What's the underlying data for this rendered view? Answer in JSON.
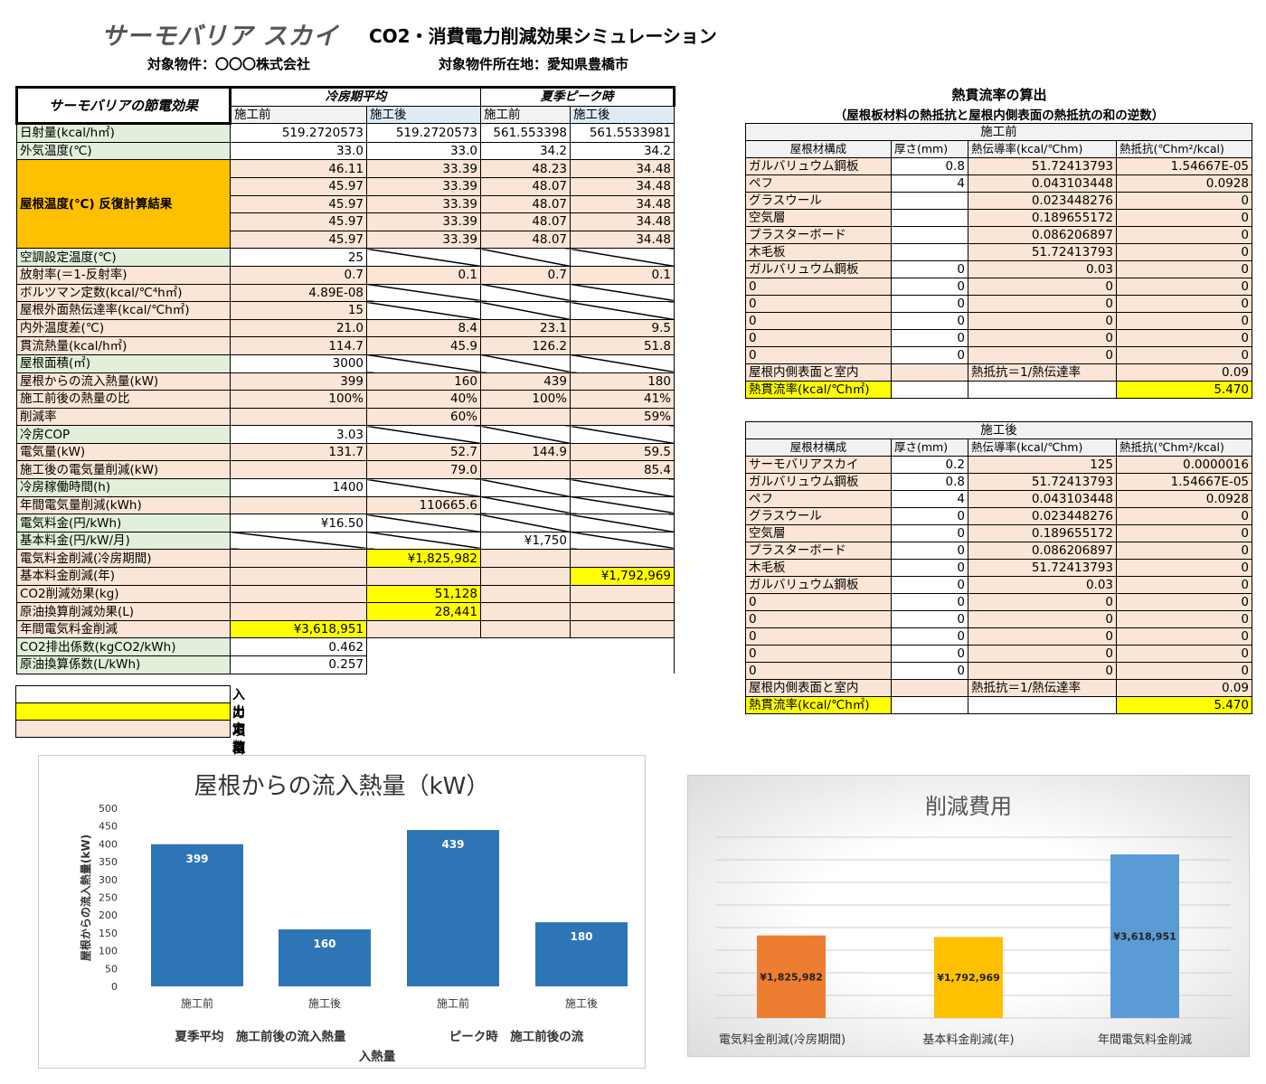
{
  "header": {
    "logo": "サーモバリア スカイ",
    "title": "CO2・消費電力削減効果シミュレーション",
    "property_label": "対象物件：",
    "property_value": "〇〇〇株式会社",
    "location_label": "対象物件所在地：",
    "location_value": "愛知県豊橋市"
  },
  "main_table": {
    "title": "サーモバリアの節電効果",
    "group_cooling": "冷房期平均",
    "group_peak": "夏季ピーク時",
    "before": "施工前",
    "after": "施工後",
    "roof_temp_label": "屋根温度(℃) 反復計算結果",
    "rows_top": [
      {
        "label": "日射量(kcal/h㎡)",
        "lc": "c-label",
        "cells": [
          [
            "519.2720573",
            "c-in"
          ],
          [
            "519.2720573",
            "c-in"
          ],
          [
            "561.553398",
            "c-in"
          ],
          [
            "561.5533981",
            "c-in"
          ]
        ]
      },
      {
        "label": "外気温度(℃)",
        "lc": "c-label",
        "cells": [
          [
            "33.0",
            "c-in"
          ],
          [
            "33.0",
            "c-in"
          ],
          [
            "34.2",
            "c-in"
          ],
          [
            "34.2",
            "c-in"
          ]
        ]
      }
    ],
    "roof_temps": [
      [
        "46.11",
        "33.39",
        "48.23",
        "34.48"
      ],
      [
        "45.97",
        "33.39",
        "48.07",
        "34.48"
      ],
      [
        "45.97",
        "33.39",
        "48.07",
        "34.48"
      ],
      [
        "45.97",
        "33.39",
        "48.07",
        "34.48"
      ],
      [
        "45.97",
        "33.39",
        "48.07",
        "34.48"
      ]
    ],
    "rows": [
      {
        "label": "空調設定温度(℃)",
        "lc": "c-label",
        "cells": [
          [
            "25",
            "c-in"
          ],
          [
            "",
            "slash"
          ],
          [
            "",
            "slash"
          ],
          [
            "",
            "slash"
          ]
        ]
      },
      {
        "label": "放射率(＝1-反射率)",
        "lc": "c-const",
        "cells": [
          [
            "0.7",
            "c-const"
          ],
          [
            "0.1",
            "c-const"
          ],
          [
            "0.7",
            "c-const"
          ],
          [
            "0.1",
            "c-const"
          ]
        ]
      },
      {
        "label": "ボルツマン定数(kcal/℃⁴h㎡)",
        "lc": "c-const",
        "cells": [
          [
            "4.89E-08",
            "c-const"
          ],
          [
            "",
            "slash"
          ],
          [
            "",
            "slash"
          ],
          [
            "",
            "slash"
          ]
        ]
      },
      {
        "label": "屋根外面熱伝達率(kcal/℃h㎡)",
        "lc": "c-const",
        "cells": [
          [
            "15",
            "c-const"
          ],
          [
            "",
            "slash"
          ],
          [
            "",
            "slash"
          ],
          [
            "",
            "slash"
          ]
        ]
      },
      {
        "label": "内外温度差(℃)",
        "lc": "c-const",
        "cells": [
          [
            "21.0",
            "c-const"
          ],
          [
            "8.4",
            "c-const"
          ],
          [
            "23.1",
            "c-const"
          ],
          [
            "9.5",
            "c-const"
          ]
        ]
      },
      {
        "label": "貫流熱量(kcal/h㎡)",
        "lc": "c-const",
        "cells": [
          [
            "114.7",
            "c-const"
          ],
          [
            "45.9",
            "c-const"
          ],
          [
            "126.2",
            "c-const"
          ],
          [
            "51.8",
            "c-const"
          ]
        ]
      },
      {
        "label": "屋根面積(㎡)",
        "lc": "c-label",
        "cells": [
          [
            "3000",
            "c-in"
          ],
          [
            "",
            "slash"
          ],
          [
            "",
            "slash"
          ],
          [
            "",
            "slash"
          ]
        ]
      },
      {
        "label": "屋根からの流入熱量(kW)",
        "lc": "c-const",
        "cells": [
          [
            "399",
            "c-const"
          ],
          [
            "160",
            "c-const"
          ],
          [
            "439",
            "c-const"
          ],
          [
            "180",
            "c-const"
          ]
        ]
      },
      {
        "label": "施工前後の熱量の比",
        "lc": "c-const",
        "cells": [
          [
            "100%",
            "c-const"
          ],
          [
            "40%",
            "c-const"
          ],
          [
            "100%",
            "c-const"
          ],
          [
            "41%",
            "c-const"
          ]
        ]
      },
      {
        "label": "削減率",
        "lc": "c-const",
        "cells": [
          [
            "",
            "c-const"
          ],
          [
            "60%",
            "c-const"
          ],
          [
            "",
            "c-const"
          ],
          [
            "59%",
            "c-const"
          ]
        ]
      },
      {
        "label": "冷房COP",
        "lc": "c-label",
        "cells": [
          [
            "3.03",
            "c-in"
          ],
          [
            "",
            "slash"
          ],
          [
            "",
            "slash"
          ],
          [
            "",
            "slash"
          ]
        ]
      },
      {
        "label": "電気量(kW)",
        "lc": "c-const",
        "cells": [
          [
            "131.7",
            "c-const"
          ],
          [
            "52.7",
            "c-const"
          ],
          [
            "144.9",
            "c-const"
          ],
          [
            "59.5",
            "c-const"
          ]
        ]
      },
      {
        "label": "施工後の電気量削減(kW)",
        "lc": "c-const",
        "cells": [
          [
            "",
            "c-const"
          ],
          [
            "79.0",
            "c-const"
          ],
          [
            "",
            "c-const"
          ],
          [
            "85.4",
            "c-const"
          ]
        ]
      },
      {
        "label": "冷房稼働時間(h)",
        "lc": "c-label",
        "cells": [
          [
            "1400",
            "c-in"
          ],
          [
            "",
            "slash"
          ],
          [
            "",
            "slash"
          ],
          [
            "",
            "slash"
          ]
        ]
      },
      {
        "label": "年間電気量削減(kWh)",
        "lc": "c-const",
        "cells": [
          [
            "",
            "c-const"
          ],
          [
            "110665.6",
            "c-const"
          ],
          [
            "",
            "slash"
          ],
          [
            "",
            "slash"
          ]
        ]
      },
      {
        "label": "電気料金(円/kWh)",
        "lc": "c-label",
        "cells": [
          [
            "¥16.50",
            "c-in"
          ],
          [
            "",
            "slash"
          ],
          [
            "",
            "slash"
          ],
          [
            "",
            "slash"
          ]
        ]
      },
      {
        "label": "基本料金(円/kW/月)",
        "lc": "c-label",
        "cells": [
          [
            "",
            "slash"
          ],
          [
            "",
            "slash"
          ],
          [
            "¥1,750",
            "c-in"
          ],
          [
            "",
            "slash"
          ]
        ]
      },
      {
        "label": "電気料金削減(冷房期間)",
        "lc": "c-const",
        "cells": [
          [
            "",
            "c-const"
          ],
          [
            "¥1,825,982",
            "c-out"
          ],
          [
            "",
            "c-const"
          ],
          [
            "",
            "c-const"
          ]
        ]
      },
      {
        "label": "基本料金削減(年)",
        "lc": "c-const",
        "cells": [
          [
            "",
            "c-const"
          ],
          [
            "",
            "c-const"
          ],
          [
            "",
            "c-const"
          ],
          [
            "¥1,792,969",
            "c-out"
          ]
        ]
      },
      {
        "label": "CO2削減効果(kg)",
        "lc": "c-const",
        "cells": [
          [
            "",
            "c-const"
          ],
          [
            "51,128",
            "c-out"
          ],
          [
            "",
            "c-const"
          ],
          [
            "",
            "c-const"
          ]
        ]
      },
      {
        "label": "原油換算削減効果(L)",
        "lc": "c-const",
        "cells": [
          [
            "",
            "c-const"
          ],
          [
            "28,441",
            "c-out"
          ],
          [
            "",
            "c-const"
          ],
          [
            "",
            "c-const"
          ]
        ]
      },
      {
        "label": "年間電気料金削減",
        "lc": "c-const",
        "cells": [
          [
            "¥3,618,951",
            "c-out"
          ],
          [
            "",
            "c-const"
          ],
          [
            "",
            "c-const"
          ],
          [
            "",
            "c-const"
          ]
        ]
      },
      {
        "label": "CO2排出係数(kgCO2/kWh)",
        "lc": "c-label",
        "cells": [
          [
            "0.462",
            "c-in"
          ]
        ]
      },
      {
        "label": "原油換算係数(L/kWh)",
        "lc": "c-label",
        "cells": [
          [
            "0.257",
            "c-in"
          ]
        ]
      }
    ]
  },
  "legend": [
    {
      "label": "入力項目",
      "color": "#ffffff"
    },
    {
      "label": "出力項目",
      "color": "#ffff00"
    },
    {
      "label": "定数または途中計算結果",
      "color": "#fbe5d6"
    }
  ],
  "heat_flow": {
    "title": "熱貫流率の算出",
    "subtitle": "（屋根板材料の熱抵抗と屋根内側表面の熱抵抗の和の逆数）",
    "col_material": "屋根材構成",
    "col_thickness": "厚さ(mm)",
    "col_conductivity": "熱伝導率(kcal/℃hm)",
    "col_resistance": "熱抵抗(℃hm²/kcal)",
    "inner_label": "屋根内側表面と室内",
    "inner_formula": "熱抵抗＝1/熱伝達率",
    "u_label": "熱貫流率(kcal/℃h㎡)",
    "before": {
      "title": "施工前",
      "rows": [
        [
          "ガルバリュウム鋼板",
          "0.8",
          "51.72413793",
          "1.54667E-05"
        ],
        [
          "ペフ",
          "4",
          "0.043103448",
          "0.0928"
        ],
        [
          "グラスウール",
          "",
          "0.023448276",
          "0"
        ],
        [
          "空気層",
          "",
          "0.189655172",
          "0"
        ],
        [
          "プラスターボード",
          "",
          "0.086206897",
          "0"
        ],
        [
          "木毛板",
          "",
          "51.72413793",
          "0"
        ],
        [
          "ガルバリュウム鋼板",
          "0",
          "0.03",
          "0"
        ],
        [
          "0",
          "0",
          "0",
          "0"
        ],
        [
          "0",
          "0",
          "0",
          "0"
        ],
        [
          "0",
          "0",
          "0",
          "0"
        ],
        [
          "0",
          "0",
          "0",
          "0"
        ],
        [
          "0",
          "0",
          "0",
          "0"
        ]
      ],
      "inner_value": "0.09",
      "u_value": "5.470"
    },
    "after": {
      "title": "施工後",
      "rows": [
        [
          "サーモバリアスカイ",
          "0.2",
          "125",
          "0.0000016"
        ],
        [
          "ガルバリュウム鋼板",
          "0.8",
          "51.72413793",
          "1.54667E-05"
        ],
        [
          "ペフ",
          "4",
          "0.043103448",
          "0.0928"
        ],
        [
          "グラスウール",
          "0",
          "0.023448276",
          "0"
        ],
        [
          "空気層",
          "0",
          "0.189655172",
          "0"
        ],
        [
          "プラスターボード",
          "0",
          "0.086206897",
          "0"
        ],
        [
          "木毛板",
          "0",
          "51.72413793",
          "0"
        ],
        [
          "ガルバリュウム鋼板",
          "0",
          "0.03",
          "0"
        ],
        [
          "0",
          "0",
          "0",
          "0"
        ],
        [
          "0",
          "0",
          "0",
          "0"
        ],
        [
          "0",
          "0",
          "0",
          "0"
        ],
        [
          "0",
          "0",
          "0",
          "0"
        ],
        [
          "0",
          "0",
          "0",
          "0"
        ]
      ],
      "inner_value": "0.09",
      "u_value": "5.470"
    }
  },
  "chart_data": [
    {
      "type": "bar",
      "title": "屋根からの流入熱量（kW）",
      "ylabel": "屋根からの流入熱量(kW)",
      "ylim": [
        0,
        500
      ],
      "yticks": [
        "0",
        "50",
        "100",
        "150",
        "200",
        "250",
        "300",
        "350",
        "400",
        "450",
        "500"
      ],
      "categories": [
        "施工前",
        "施工後",
        "施工前",
        "施工後"
      ],
      "values": [
        399,
        160,
        439,
        180
      ],
      "value_labels": [
        "399",
        "160",
        "439",
        "180"
      ],
      "group_labels": [
        "夏季平均　施工前後の流入熱量",
        "ピーク時　施工前後の流"
      ],
      "group_label_tail": "入熱量",
      "colors": [
        "#2e75b6"
      ]
    },
    {
      "type": "bar",
      "title": "削減費用",
      "ylim": [
        0,
        4000000
      ],
      "categories": [
        "電気料金削減(冷房期間)",
        "基本料金削減(年)",
        "年間電気料金削減"
      ],
      "values": [
        1825982,
        1792969,
        3618951
      ],
      "value_labels": [
        "¥1,825,982",
        "¥1,792,969",
        "¥3,618,951"
      ],
      "colors": [
        "#ed7d31",
        "#ffc000",
        "#5b9bd5"
      ]
    }
  ]
}
